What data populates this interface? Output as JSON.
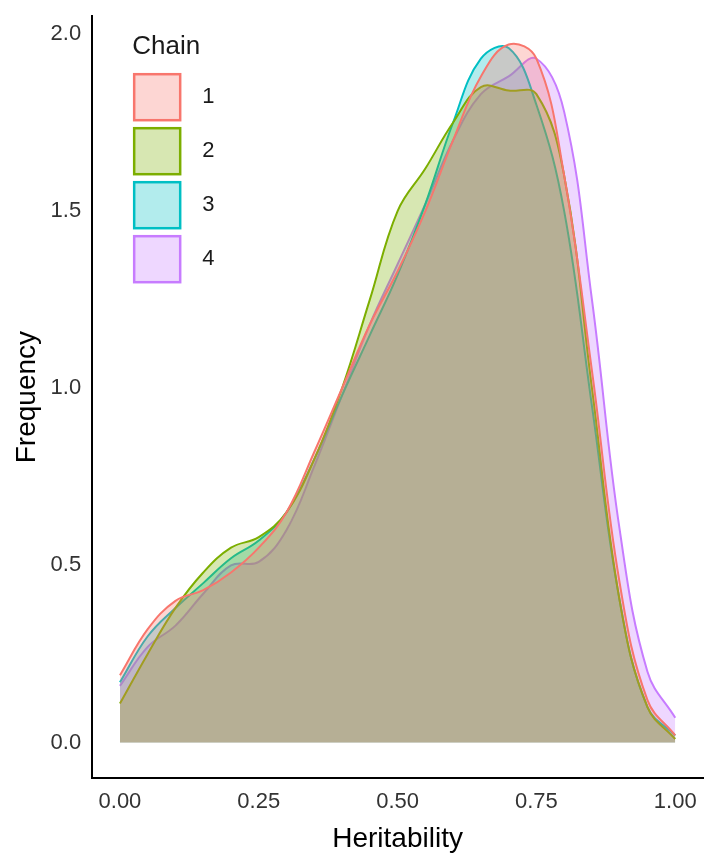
{
  "chart_data": {
    "type": "area",
    "x_label": "Heritability",
    "y_label": "Frequency",
    "legend_title": "Chain",
    "legend": "upper left",
    "grid": false,
    "x": [
      0,
      0.05,
      0.1,
      0.15,
      0.2,
      0.25,
      0.3,
      0.35,
      0.4,
      0.45,
      0.5,
      0.55,
      0.6,
      0.65,
      0.7,
      0.75,
      0.8,
      0.85,
      0.9,
      0.95,
      1.0
    ],
    "series": [
      {
        "name": "1",
        "color": "#F8766D",
        "values": [
          0.19,
          0.32,
          0.4,
          0.43,
          0.48,
          0.55,
          0.65,
          0.82,
          1.0,
          1.18,
          1.33,
          1.5,
          1.7,
          1.88,
          1.97,
          1.93,
          1.6,
          1.05,
          0.45,
          0.12,
          0.02
        ]
      },
      {
        "name": "2",
        "color": "#7CAE00",
        "values": [
          0.11,
          0.25,
          0.38,
          0.48,
          0.55,
          0.58,
          0.65,
          0.8,
          1.0,
          1.25,
          1.5,
          1.62,
          1.75,
          1.85,
          1.84,
          1.83,
          1.6,
          1.0,
          0.4,
          0.1,
          0.01
        ]
      },
      {
        "name": "3",
        "color": "#00BFC4",
        "values": [
          0.17,
          0.3,
          0.38,
          0.45,
          0.52,
          0.57,
          0.65,
          0.8,
          0.98,
          1.15,
          1.32,
          1.52,
          1.75,
          1.93,
          1.96,
          1.8,
          1.5,
          0.95,
          0.4,
          0.1,
          0.02
        ]
      },
      {
        "name": "4",
        "color": "#C77CFF",
        "values": [
          0.16,
          0.27,
          0.33,
          0.42,
          0.5,
          0.51,
          0.6,
          0.78,
          0.98,
          1.18,
          1.35,
          1.52,
          1.7,
          1.83,
          1.88,
          1.93,
          1.78,
          1.25,
          0.6,
          0.2,
          0.07
        ]
      }
    ],
    "xlim": [
      -0.05,
      1.05
    ],
    "xticks": [
      {
        "value": 0,
        "label": "0.00"
      },
      {
        "value": 0.25,
        "label": "0.25"
      },
      {
        "value": 0.5,
        "label": "0.50"
      },
      {
        "value": 0.75,
        "label": "0.75"
      },
      {
        "value": 1.0,
        "label": "1.00"
      }
    ],
    "ylim": [
      -0.1,
      2.05
    ],
    "yticks": [
      {
        "value": 0,
        "label": "0.0"
      },
      {
        "value": 0.5,
        "label": "0.5"
      },
      {
        "value": 1.0,
        "label": "1.0"
      },
      {
        "value": 1.5,
        "label": "1.5"
      },
      {
        "value": 2.0,
        "label": "2.0"
      }
    ]
  }
}
